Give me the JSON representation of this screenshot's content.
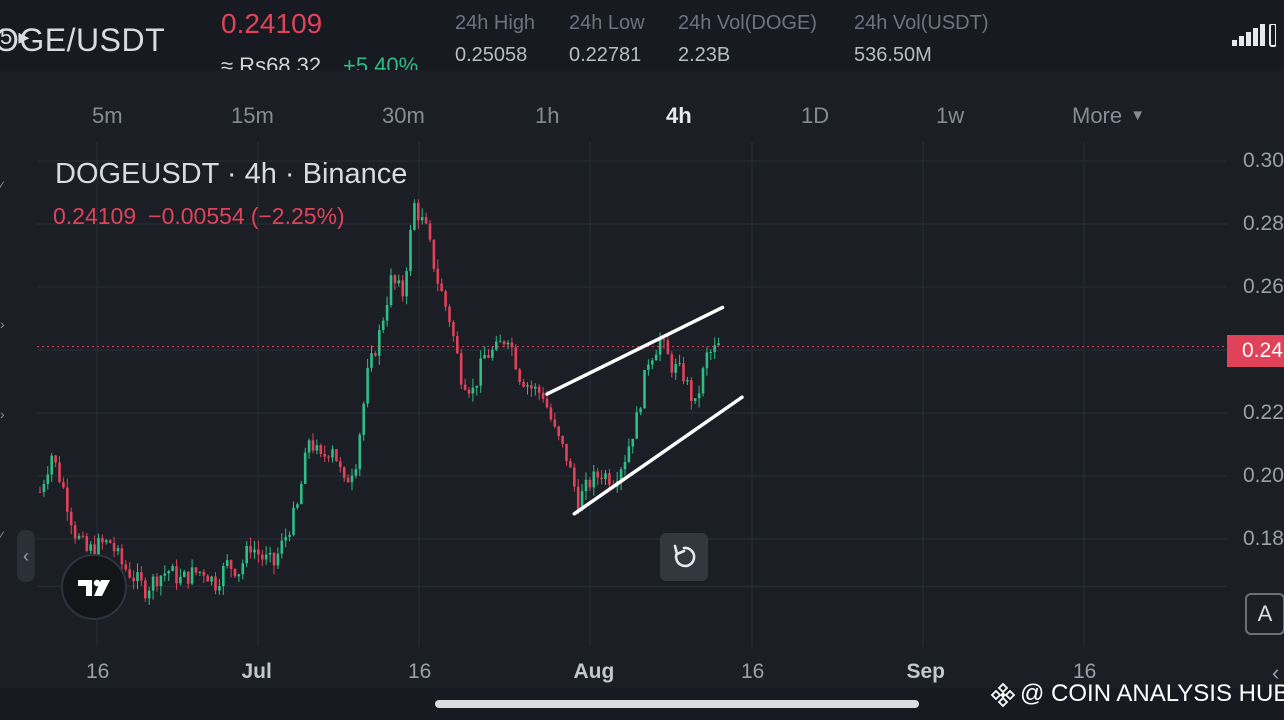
{
  "header": {
    "pair": "OGE/USDT",
    "pair_prefix_glyph": "5 ▸",
    "last_price": "0.24109",
    "fiat_price": "≈ Rs68.32",
    "change_pct": "+5.40%",
    "stats": [
      {
        "label": "24h High",
        "value": "0.25058"
      },
      {
        "label": "24h Low",
        "value": "0.22781"
      },
      {
        "label": "24h Vol(DOGE)",
        "value": "2.23B"
      },
      {
        "label": "24h Vol(USDT)",
        "value": "536.50M"
      }
    ],
    "signal_icon": "signal-bars-icon"
  },
  "timeframes": {
    "items": [
      "5m",
      "15m",
      "30m",
      "1h",
      "4h",
      "1D",
      "1w",
      "More"
    ],
    "active": "4h",
    "more_caret": "▼"
  },
  "legend": {
    "title": "DOGEUSDT · 4h · Binance",
    "close": "0.24109",
    "change": "−0.00554",
    "change_pct": "(−2.25%)"
  },
  "chart_data": {
    "type": "candlestick",
    "symbol": "DOGEUSDT",
    "interval": "4h",
    "exchange": "Binance",
    "y_ticks": [
      "0.30",
      "0.28",
      "0.26",
      "0.24",
      "0.22",
      "0.20",
      "0.18"
    ],
    "y_range": [
      0.16,
      0.305
    ],
    "x_ticks": [
      "16",
      "Jul",
      "16",
      "Aug",
      "16",
      "Sep",
      "16"
    ],
    "last_price": 0.24109,
    "last_price_label": "0.24",
    "grid": true,
    "colors": {
      "up": "#2ebd85",
      "down": "#e0425a",
      "grid": "#2a2e37",
      "trendline": "#ffffff"
    },
    "price_path": [
      [
        0,
        0.195
      ],
      [
        3,
        0.207
      ],
      [
        6,
        0.196
      ],
      [
        9,
        0.182
      ],
      [
        12,
        0.176
      ],
      [
        15,
        0.178
      ],
      [
        18,
        0.179
      ],
      [
        21,
        0.172
      ],
      [
        24,
        0.168
      ],
      [
        27,
        0.164
      ],
      [
        30,
        0.168
      ],
      [
        33,
        0.17
      ],
      [
        36,
        0.167
      ],
      [
        39,
        0.169
      ],
      [
        42,
        0.17
      ],
      [
        45,
        0.166
      ],
      [
        48,
        0.172
      ],
      [
        51,
        0.17
      ],
      [
        54,
        0.178
      ],
      [
        57,
        0.174
      ],
      [
        60,
        0.172
      ],
      [
        63,
        0.181
      ],
      [
        66,
        0.19
      ],
      [
        69,
        0.212
      ],
      [
        72,
        0.205
      ],
      [
        75,
        0.21
      ],
      [
        78,
        0.197
      ],
      [
        81,
        0.205
      ],
      [
        84,
        0.232
      ],
      [
        87,
        0.245
      ],
      [
        90,
        0.262
      ],
      [
        93,
        0.258
      ],
      [
        96,
        0.286
      ],
      [
        99,
        0.278
      ],
      [
        102,
        0.262
      ],
      [
        105,
        0.25
      ],
      [
        108,
        0.232
      ],
      [
        111,
        0.227
      ],
      [
        114,
        0.238
      ],
      [
        117,
        0.24
      ],
      [
        120,
        0.245
      ],
      [
        123,
        0.232
      ],
      [
        126,
        0.228
      ],
      [
        129,
        0.226
      ],
      [
        132,
        0.214
      ],
      [
        135,
        0.206
      ],
      [
        138,
        0.192
      ],
      [
        141,
        0.198
      ],
      [
        144,
        0.201
      ],
      [
        147,
        0.199
      ],
      [
        150,
        0.206
      ],
      [
        153,
        0.218
      ],
      [
        156,
        0.237
      ],
      [
        159,
        0.243
      ],
      [
        162,
        0.235
      ],
      [
        165,
        0.232
      ],
      [
        168,
        0.222
      ],
      [
        171,
        0.238
      ],
      [
        174,
        0.241
      ]
    ],
    "trendlines": [
      {
        "name": "upper",
        "from": [
          130,
          0.226
        ],
        "to": [
          175,
          0.2535
        ]
      },
      {
        "name": "lower",
        "from": [
          137,
          0.188
        ],
        "to": [
          180,
          0.225
        ]
      }
    ]
  },
  "controls": {
    "left_handle_glyph": "‹",
    "auto_label": "A",
    "right_chevron": "‹"
  },
  "watermark": {
    "text": "@ COIN ANALYSIS HUB"
  }
}
